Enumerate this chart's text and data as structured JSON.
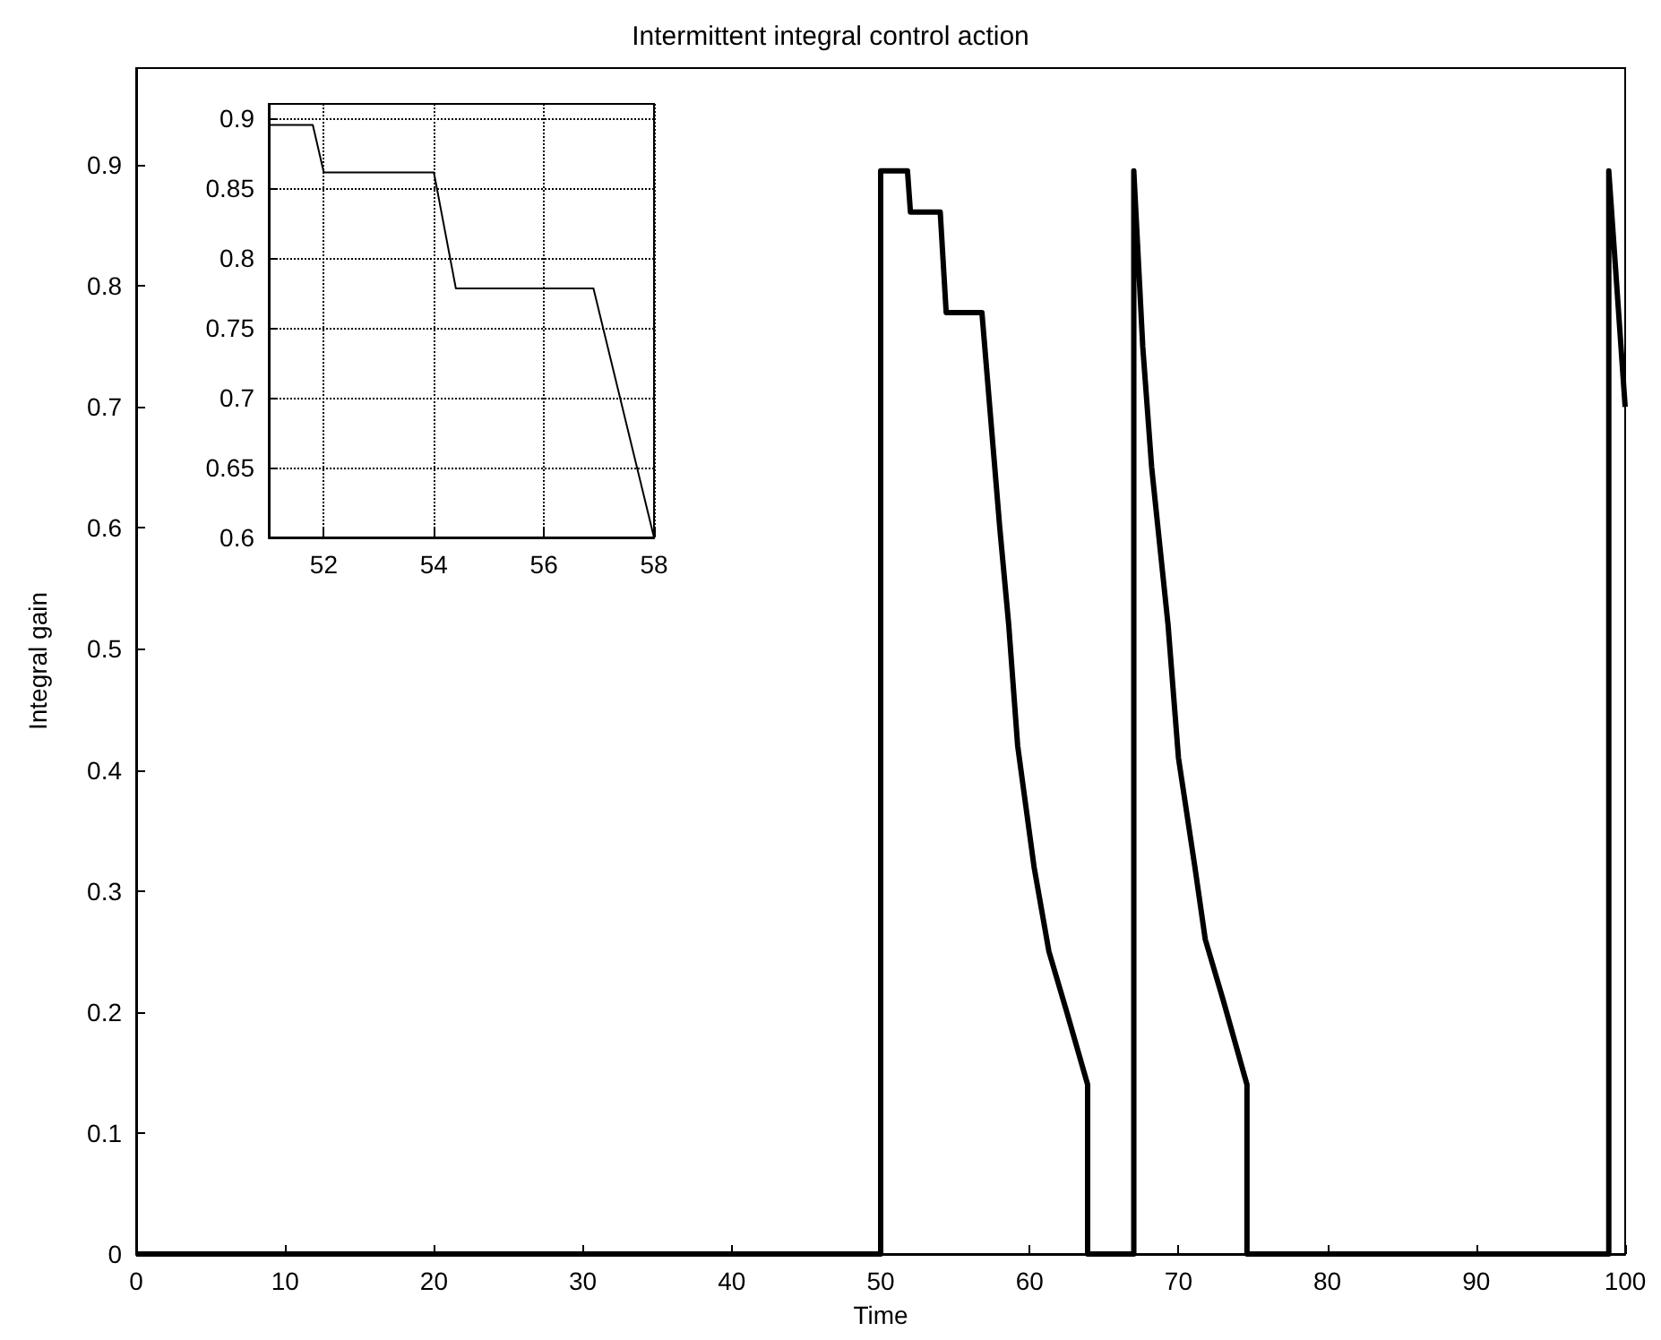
{
  "chart_data": [
    {
      "type": "line",
      "title": "Intermittent integral control action",
      "xlabel": "Time",
      "ylabel": "Integral gain",
      "x": [
        0,
        50,
        50,
        51.8,
        52,
        54,
        54.4,
        56.8,
        58,
        58.6,
        59.2,
        60.3,
        61.3,
        62.5,
        63.9,
        63.9,
        67,
        67,
        67.6,
        68.2,
        69.3,
        70,
        71.1,
        71.8,
        73,
        74.6,
        74.6,
        98.9,
        98.9,
        100
      ],
      "series": [
        {
          "color": "#000000",
          "values": [
            0,
            0,
            0.895,
            0.895,
            0.861,
            0.861,
            0.778,
            0.778,
            0.6,
            0.52,
            0.42,
            0.32,
            0.25,
            0.2,
            0.14,
            0,
            0,
            0.895,
            0.75,
            0.65,
            0.52,
            0.41,
            0.32,
            0.26,
            0.21,
            0.14,
            0,
            0,
            0.895,
            0.7
          ]
        }
      ],
      "xlim": [
        0,
        100
      ],
      "xticks": [
        0,
        10,
        20,
        30,
        40,
        50,
        60,
        70,
        80,
        90,
        100
      ],
      "ylim": [
        0,
        0.98
      ],
      "yticks": [
        0,
        0.1,
        0.2,
        0.3,
        0.4,
        0.5,
        0.6,
        0.7,
        0.8,
        0.9
      ],
      "grid": false,
      "marker": "none"
    },
    {
      "type": "line",
      "x": [
        51,
        51.8,
        52,
        54,
        54.4,
        56.9,
        58
      ],
      "series": [
        {
          "color": "#000000",
          "values": [
            0.895,
            0.895,
            0.861,
            0.861,
            0.778,
            0.778,
            0.6
          ]
        }
      ],
      "xlim": [
        51,
        58
      ],
      "xticks": [
        52,
        54,
        56,
        58
      ],
      "ylim": [
        0.6,
        0.91
      ],
      "yticks": [
        0.6,
        0.65,
        0.7,
        0.75,
        0.8,
        0.85,
        0.9
      ],
      "grid": true,
      "marker": "none"
    }
  ]
}
